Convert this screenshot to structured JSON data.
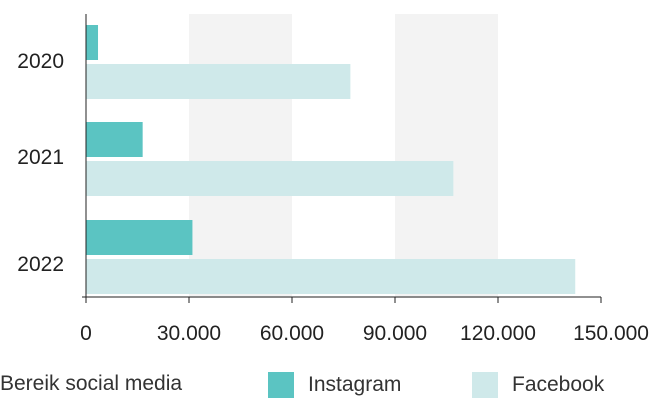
{
  "chart_data": {
    "type": "bar",
    "orientation": "horizontal",
    "categories": [
      "2020",
      "2021",
      "2022"
    ],
    "series": [
      {
        "name": "Instagram",
        "values": [
          3500,
          16500,
          31000
        ],
        "color": "#5bc4c2"
      },
      {
        "name": "Facebook",
        "values": [
          77000,
          107000,
          142500
        ],
        "color": "#cfe9ea"
      }
    ],
    "xlim": [
      0,
      150000
    ],
    "x_ticks": [
      0,
      30000,
      60000,
      90000,
      120000,
      150000
    ],
    "x_tick_labels": [
      "0",
      "30.000",
      "60.000",
      "90.000",
      "120.000",
      "150.000"
    ],
    "grid": "alternating vertical bands",
    "band_color": "#f3f3f3",
    "legend_position": "bottom"
  },
  "legend": {
    "title": "Bereik social media",
    "items": [
      "Instagram",
      "Facebook"
    ]
  }
}
